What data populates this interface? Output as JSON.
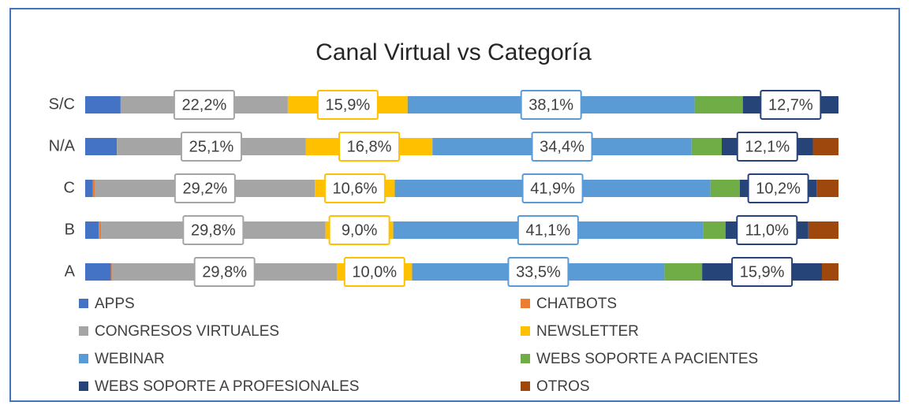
{
  "chart_data": {
    "type": "bar",
    "orientation": "horizontal",
    "stacked": true,
    "title": "Canal Virtual vs Categoría",
    "categories": [
      "S/C",
      "N/A",
      "C",
      "B",
      "A"
    ],
    "xlim": [
      0,
      100
    ],
    "series": [
      {
        "name": "APPS",
        "color": "#4472c4",
        "values": [
          4.7,
          4.2,
          1.0,
          1.8,
          3.4
        ]
      },
      {
        "name": "CHATBOTS",
        "color": "#ed7d31",
        "values": [
          0,
          0,
          0.3,
          0.3,
          0.2
        ]
      },
      {
        "name": "CONGRESOS VIRTUALES",
        "color": "#a5a5a5",
        "values": [
          22.2,
          25.1,
          29.2,
          29.8,
          29.8
        ],
        "value_labels": [
          "22,2%",
          "25,1%",
          "29,2%",
          "29,8%",
          "29,8%"
        ]
      },
      {
        "name": "NEWSLETTER",
        "color": "#ffc000",
        "values": [
          15.9,
          16.8,
          10.6,
          9.0,
          10.0
        ],
        "value_labels": [
          "15,9%",
          "16,8%",
          "10,6%",
          "9,0%",
          "10,0%"
        ]
      },
      {
        "name": "WEBINAR",
        "color": "#5b9bd5",
        "values": [
          38.1,
          34.4,
          41.9,
          41.1,
          33.5
        ],
        "value_labels": [
          "38,1%",
          "34,4%",
          "41,9%",
          "41,1%",
          "33,5%"
        ]
      },
      {
        "name": "WEBS SOPORTE A PACIENTES",
        "color": "#70ad47",
        "values": [
          6.4,
          4.0,
          3.9,
          3.0,
          5.0
        ]
      },
      {
        "name": "WEBS SOPORTE A PROFESIONALES",
        "color": "#264478",
        "values": [
          12.7,
          12.1,
          10.2,
          11.0,
          15.9
        ],
        "value_labels": [
          "12,7%",
          "12,1%",
          "10,2%",
          "11,0%",
          "15,9%"
        ]
      },
      {
        "name": "OTROS",
        "color": "#9e480e",
        "values": [
          0,
          3.4,
          2.9,
          4.0,
          2.2
        ]
      }
    ],
    "legend": "bottom"
  }
}
